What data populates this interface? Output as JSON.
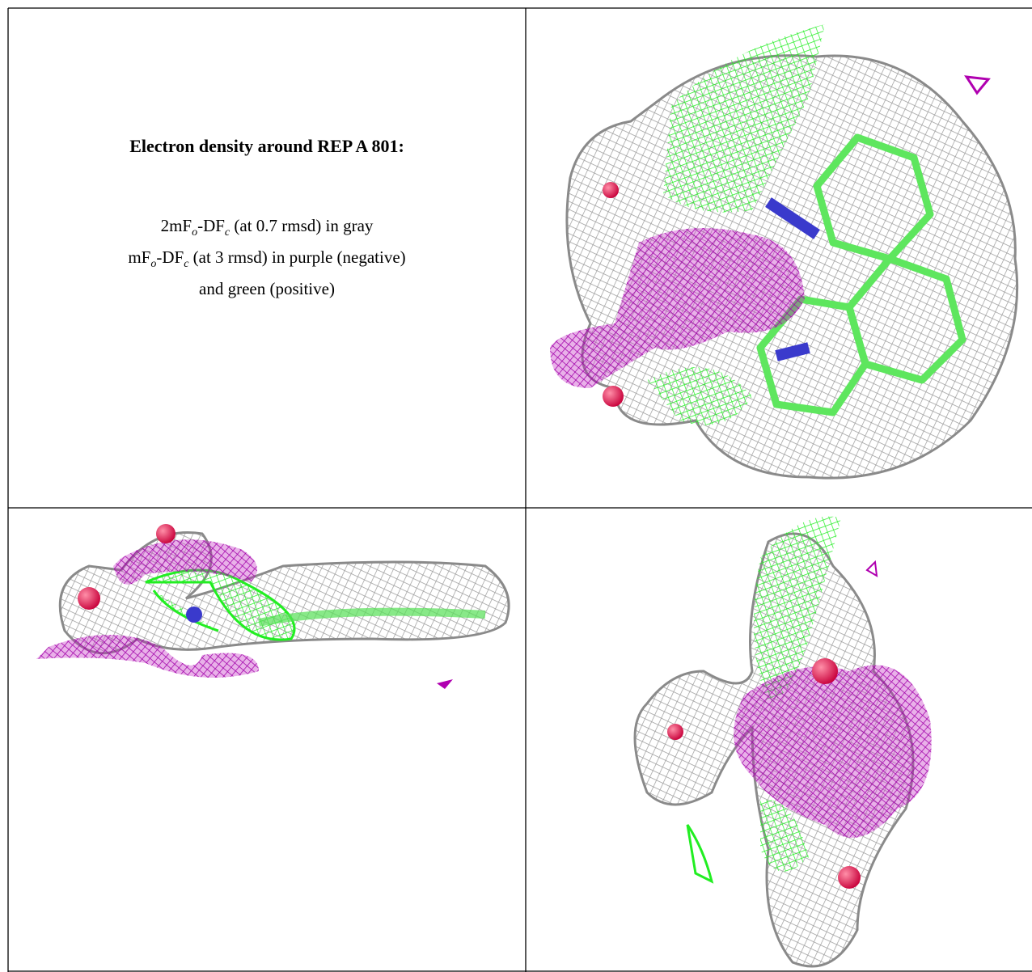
{
  "title": "Electron density around REP A 801:",
  "lines": [
    {
      "parts": [
        "2mF",
        "o",
        "-DF",
        "c",
        " (at 0.7 rmsd) in gray"
      ]
    },
    {
      "parts": [
        "mF",
        "o",
        "-DF",
        "c",
        " (at 3 rmsd) in purple (negative)"
      ]
    },
    {
      "parts": [
        "and green (positive)"
      ]
    }
  ]
}
